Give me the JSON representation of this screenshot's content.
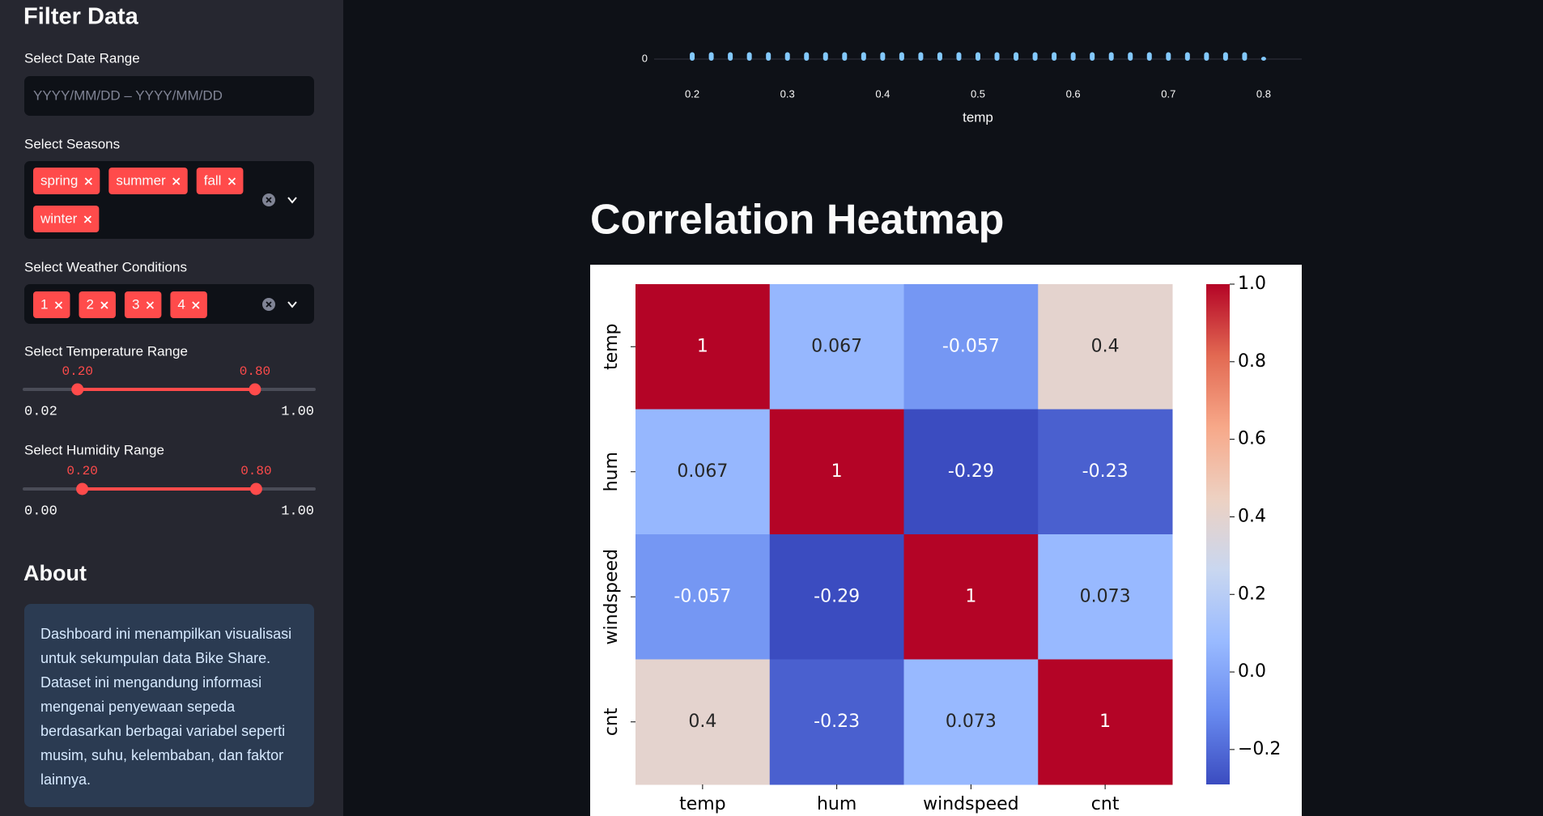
{
  "sidebar": {
    "title": "Filter Data",
    "date_range": {
      "label": "Select Date Range",
      "placeholder": "YYYY/MM/DD – YYYY/MM/DD"
    },
    "seasons": {
      "label": "Select Seasons",
      "options": [
        "spring",
        "summer",
        "fall",
        "winter"
      ]
    },
    "weather": {
      "label": "Select Weather Conditions",
      "options": [
        "1",
        "2",
        "3",
        "4"
      ]
    },
    "temperature": {
      "label": "Select Temperature Range",
      "low": {
        "value": 0.2,
        "label": "0.20"
      },
      "high": {
        "value": 0.8,
        "label": "0.80"
      },
      "min": {
        "value": 0.02,
        "label": "0.02"
      },
      "max": {
        "value": 1,
        "label": "1.00"
      }
    },
    "humidity": {
      "label": "Select Humidity Range",
      "low": {
        "value": 0.2,
        "label": "0.20"
      },
      "high": {
        "value": 0.8,
        "label": "0.80"
      },
      "min": {
        "value": 0,
        "label": "0.00"
      },
      "max": {
        "value": 1,
        "label": "1.00"
      }
    },
    "about": {
      "title": "About",
      "text": "Dashboard ini menampilkan visualisasi untuk sekumpulan data Bike Share. Dataset ini mengandung informasi mengenai penyewaan sepeda berdasarkan berbagai variabel seperti musim, suhu, kelembaban, dan faktor lainnya."
    }
  },
  "chart_data": [
    {
      "type": "bar",
      "xlabel": "temp",
      "x": [
        0.2,
        0.22,
        0.24,
        0.26,
        0.28,
        0.3,
        0.32,
        0.34,
        0.36,
        0.38,
        0.4,
        0.42,
        0.44,
        0.46,
        0.48,
        0.5,
        0.52,
        0.54,
        0.56,
        0.58,
        0.6,
        0.62,
        0.64,
        0.66,
        0.68,
        0.7,
        0.72,
        0.74,
        0.76,
        0.78,
        0.8
      ],
      "values": [
        180,
        180,
        180,
        180,
        180,
        180,
        180,
        180,
        180,
        180,
        180,
        180,
        180,
        180,
        180,
        180,
        180,
        180,
        180,
        180,
        180,
        180,
        180,
        180,
        180,
        180,
        180,
        180,
        180,
        180,
        60
      ],
      "color": "#83c9ff",
      "xlim": [
        0.16,
        0.84
      ],
      "xticks": [
        0.2,
        0.3,
        0.4,
        0.5,
        0.6,
        0.7,
        0.8
      ],
      "ylim": [
        0,
        10000
      ],
      "yticks": [
        0
      ]
    },
    {
      "type": "heatmap",
      "title": "Correlation Heatmap",
      "x": [
        "temp",
        "hum",
        "windspeed",
        "cnt"
      ],
      "y": [
        "temp",
        "hum",
        "windspeed",
        "cnt"
      ],
      "values": [
        [
          1,
          0.067,
          -0.057,
          0.4
        ],
        [
          0.067,
          1,
          -0.29,
          -0.23
        ],
        [
          -0.057,
          -0.29,
          1,
          0.073
        ],
        [
          0.4,
          -0.23,
          0.073,
          1
        ]
      ],
      "clim": [
        -0.29,
        1
      ],
      "colorscale": [
        "#3b4cc0",
        "#688aef",
        "#99baff",
        "#c9d7f0",
        "#edd1c2",
        "#f7a889",
        "#e26952",
        "#b40426"
      ],
      "cticks": [
        {
          "value": 1,
          "label": "1.0"
        },
        {
          "value": 0.8,
          "label": "0.8"
        },
        {
          "value": 0.6,
          "label": "0.6"
        },
        {
          "value": 0.4,
          "label": "0.4"
        },
        {
          "value": 0.2,
          "label": "0.2"
        },
        {
          "value": 0,
          "label": "0.0"
        },
        {
          "value": -0.2,
          "label": "−0.2"
        }
      ]
    }
  ]
}
